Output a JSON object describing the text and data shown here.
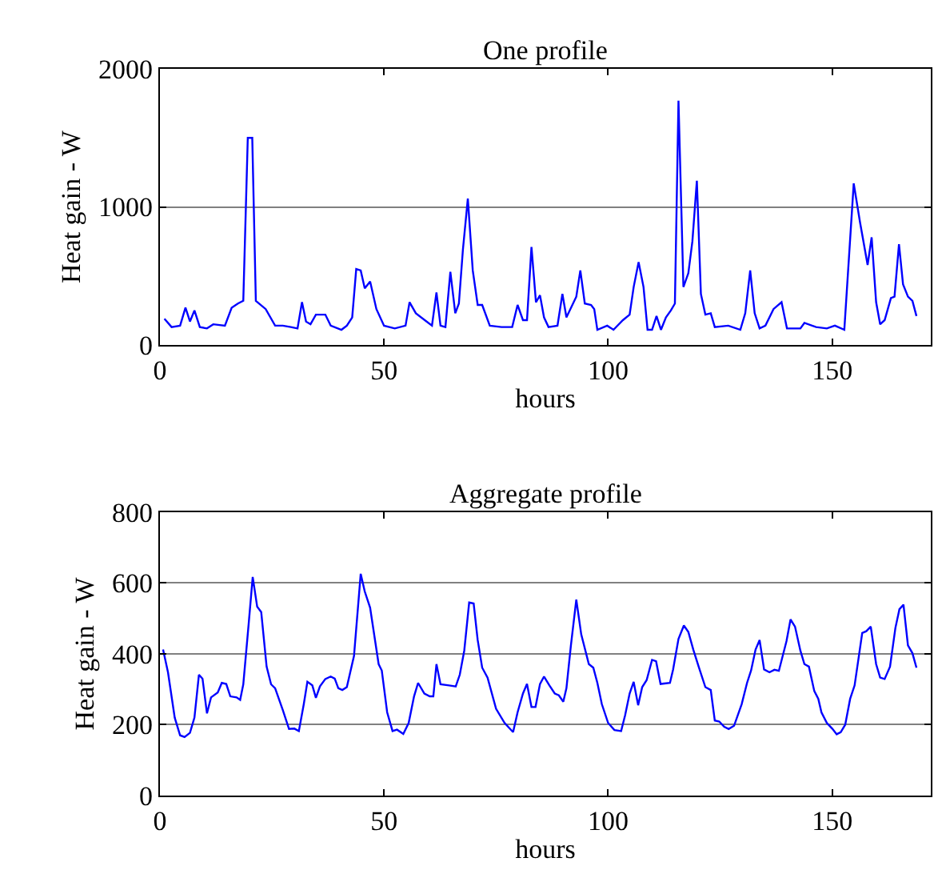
{
  "chart_data": [
    {
      "type": "line",
      "title": "One profile",
      "xlabel": "hours",
      "ylabel": "Heat gain - W",
      "xlim": [
        0,
        172
      ],
      "xticks": [
        0,
        50,
        100,
        150
      ],
      "ylim": [
        0,
        2000
      ],
      "yticks": [
        0,
        1000,
        2000
      ],
      "grid": "y",
      "series": [
        {
          "color": "#0000ff",
          "x": [
            1,
            2.6,
            4.5,
            5.7,
            6.7,
            7.7,
            8.9,
            10.5,
            11.9,
            14.5,
            16,
            17.4,
            18.6,
            19.6,
            20.6,
            21.4,
            23.6,
            25.7,
            27.4,
            29.2,
            30.7,
            31.7,
            32.6,
            33.6,
            34.8,
            36.9,
            38.1,
            40.5,
            41.7,
            42.9,
            43.8,
            44.8,
            45.7,
            46.9,
            48.3,
            50,
            52.4,
            54.8,
            55.7,
            57.1,
            59.5,
            60.7,
            61.7,
            62.6,
            63.7,
            64.8,
            65.9,
            66.7,
            67.6,
            68.7,
            69.8,
            70.9,
            71.9,
            73.6,
            76.2,
            78.6,
            79.8,
            81,
            81.9,
            82.9,
            83.9,
            84.8,
            85.7,
            86.7,
            88.7,
            89.8,
            90.7,
            92.9,
            93.8,
            94.8,
            96.2,
            96.9,
            97.6,
            99.8,
            101.2,
            103.3,
            104.8,
            105.7,
            106.8,
            107.9,
            108.8,
            109.8,
            110.8,
            111.8,
            112.9,
            114,
            114.9,
            115.7,
            116.8,
            117.9,
            118.8,
            119.8,
            120.7,
            121.7,
            122.9,
            123.8,
            126.8,
            129.5,
            130.6,
            131.7,
            132.7,
            133.8,
            135.1,
            136.9,
            138.7,
            139.9,
            142.9,
            143.8,
            146.4,
            148.8,
            150.6,
            152.7,
            154.8,
            156.2,
            157.9,
            158.8,
            159.8,
            160.7,
            161.7,
            163.1,
            163.9,
            164.9,
            165.8,
            166.9,
            167.9,
            168.8
          ],
          "values": [
            190,
            130,
            140,
            270,
            170,
            250,
            130,
            120,
            150,
            140,
            270,
            300,
            320,
            1500,
            1500,
            320,
            260,
            140,
            140,
            130,
            120,
            310,
            170,
            150,
            220,
            220,
            140,
            110,
            140,
            200,
            550,
            540,
            410,
            460,
            260,
            140,
            120,
            140,
            310,
            230,
            170,
            140,
            380,
            140,
            130,
            530,
            230,
            300,
            690,
            1060,
            540,
            290,
            290,
            140,
            130,
            130,
            290,
            180,
            180,
            710,
            310,
            360,
            200,
            130,
            140,
            370,
            200,
            350,
            540,
            300,
            290,
            260,
            110,
            140,
            110,
            180,
            220,
            420,
            600,
            420,
            110,
            110,
            210,
            110,
            200,
            250,
            300,
            1770,
            420,
            520,
            750,
            1190,
            370,
            220,
            230,
            130,
            140,
            110,
            230,
            540,
            230,
            120,
            140,
            260,
            310,
            120,
            120,
            160,
            130,
            120,
            140,
            110,
            1170,
            890,
            580,
            780,
            310,
            150,
            180,
            340,
            350,
            730,
            440,
            350,
            320,
            210
          ]
        }
      ]
    },
    {
      "type": "line",
      "title": "Aggregate profile",
      "xlabel": "hours",
      "ylabel": "Heat gain - W",
      "xlim": [
        0,
        172
      ],
      "xticks": [
        0,
        50,
        100,
        150
      ],
      "ylim": [
        0,
        800
      ],
      "yticks": [
        0,
        200,
        400,
        600,
        800
      ],
      "grid": "y",
      "series": [
        {
          "color": "#0000ff",
          "x": [
            0.7,
            1.8,
            3.3,
            4.5,
            5.5,
            6.7,
            7.7,
            8.7,
            9.5,
            10.5,
            11.4,
            12.9,
            13.8,
            14.8,
            15.7,
            17.1,
            17.9,
            18.6,
            19.8,
            20.7,
            21.7,
            22.6,
            23.8,
            24.8,
            25.7,
            27.4,
            28.8,
            30,
            31,
            32.1,
            32.9,
            34,
            34.8,
            35.7,
            36.9,
            38.1,
            39,
            39.8,
            40.7,
            41.7,
            43.3,
            44.8,
            45.7,
            46.9,
            48.8,
            49.5,
            50.7,
            51.9,
            52.9,
            54.3,
            55.5,
            56.7,
            57.6,
            59,
            60.2,
            61,
            61.7,
            62.6,
            64.5,
            66,
            66.9,
            67.9,
            69,
            70,
            70.9,
            71.9,
            73.1,
            75,
            76.9,
            78.8,
            79.8,
            81,
            81.9,
            82.9,
            83.8,
            84.8,
            85.7,
            86.9,
            88.1,
            89,
            90,
            90.7,
            91.7,
            92.9,
            94,
            95.7,
            96.7,
            97.6,
            98.6,
            100,
            101.4,
            102.9,
            103.8,
            104.8,
            105.7,
            106.7,
            107.6,
            108.6,
            109.8,
            110.7,
            111.7,
            113.8,
            114.5,
            115.7,
            116.9,
            117.9,
            119,
            120.2,
            121.7,
            122.9,
            123.8,
            124.8,
            125.9,
            126.9,
            128.1,
            129.8,
            131,
            131.9,
            132.9,
            133.8,
            134.8,
            136,
            137.1,
            138.1,
            139.8,
            140.7,
            141.7,
            142.9,
            143.8,
            144.8,
            146,
            146.9,
            147.6,
            148.8,
            150,
            151,
            151.9,
            152.9,
            154,
            155,
            156.7,
            157.6,
            158.6,
            159.8,
            160.7,
            161.7,
            162.9,
            164.1,
            165,
            165.9,
            166.9,
            167.9,
            168.8
          ],
          "values": [
            412,
            348,
            220,
            170,
            165,
            177,
            220,
            341,
            330,
            232,
            277,
            291,
            318,
            315,
            280,
            277,
            270,
            314,
            485,
            617,
            533,
            518,
            364,
            314,
            303,
            242,
            188,
            189,
            182,
            258,
            321,
            311,
            276,
            308,
            329,
            336,
            330,
            303,
            298,
            306,
            394,
            626,
            576,
            530,
            371,
            353,
            235,
            182,
            186,
            174,
            205,
            280,
            318,
            288,
            280,
            280,
            371,
            314,
            311,
            308,
            341,
            409,
            545,
            542,
            439,
            361,
            333,
            245,
            205,
            179,
            235,
            288,
            315,
            250,
            250,
            315,
            336,
            311,
            288,
            283,
            265,
            303,
            424,
            553,
            455,
            371,
            361,
            318,
            258,
            205,
            185,
            182,
            227,
            288,
            321,
            255,
            306,
            326,
            383,
            379,
            315,
            318,
            356,
            442,
            480,
            462,
            412,
            364,
            306,
            298,
            212,
            209,
            194,
            188,
            197,
            258,
            318,
            353,
            412,
            439,
            356,
            348,
            355,
            352,
            436,
            497,
            477,
            409,
            371,
            364,
            295,
            273,
            235,
            205,
            189,
            173,
            179,
            200,
            273,
            311,
            459,
            464,
            477,
            371,
            333,
            329,
            364,
            473,
            526,
            539,
            424,
            402,
            361
          ]
        }
      ]
    }
  ]
}
